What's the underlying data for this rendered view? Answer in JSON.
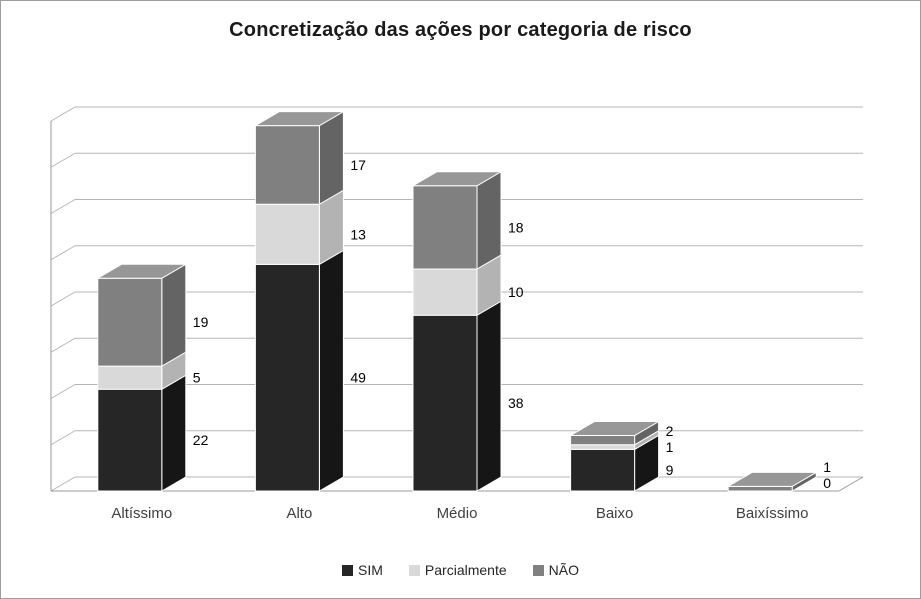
{
  "window": {
    "background_color": "#ffffff",
    "border_color": "#9d9d9d"
  },
  "chart_data": {
    "type": "bar",
    "stacked": true,
    "effect": "3d",
    "title": "Concretização das ações por categoria de risco",
    "categories": [
      "Altíssimo",
      "Alto",
      "Médio",
      "Baixo",
      "Baixíssimo"
    ],
    "series": [
      {
        "name": "SIM",
        "values": [
          22,
          49,
          38,
          9,
          0
        ],
        "labels": [
          22,
          49,
          38,
          9,
          0
        ],
        "color": "#262626",
        "side_color": "#161616",
        "top_color": "#3f3f3f"
      },
      {
        "name": "Parcialmente",
        "values": [
          5,
          13,
          10,
          1,
          0
        ],
        "labels": [
          5,
          13,
          10,
          1,
          null
        ],
        "color": "#d9d9d9",
        "side_color": "#b3b3b3",
        "top_color": "#e8e8e8"
      },
      {
        "name": "NÃO",
        "values": [
          19,
          17,
          18,
          2,
          1
        ],
        "labels": [
          19,
          17,
          18,
          2,
          1
        ],
        "color": "#808080",
        "side_color": "#646464",
        "top_color": "#979797"
      }
    ],
    "totals": [
      46,
      79,
      66,
      12,
      1
    ],
    "xlabel": "",
    "ylabel": "",
    "ylim": [
      0,
      80
    ],
    "gridline_step": 10,
    "grid": true,
    "value_axis_tick_labels_visible": false,
    "data_labels_position": "outside-right",
    "legend_position": "bottom",
    "gridline_color": "#b5b5b5",
    "axis_color": "#9a9a9a",
    "label_text_color": "#000000",
    "category_text_color": "#3f3f3f"
  }
}
